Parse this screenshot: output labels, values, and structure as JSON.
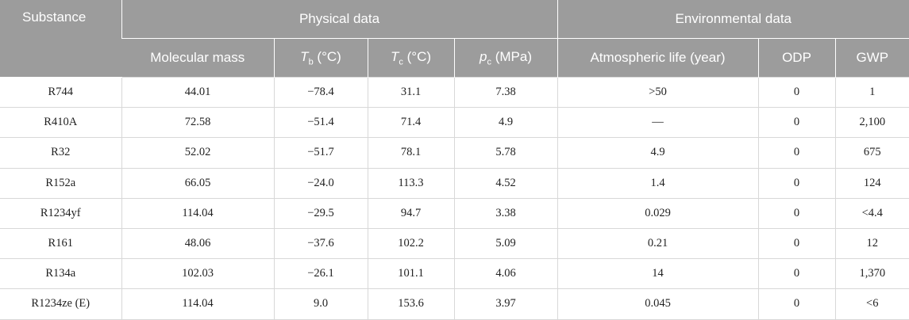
{
  "table": {
    "group_headers": [
      "Substance",
      "Physical data",
      "Environmental data"
    ],
    "columns": [
      {
        "text": "Molecular mass"
      },
      {
        "symbol": "T",
        "subscript": "b",
        "text": "(°C)"
      },
      {
        "symbol": "T",
        "subscript": "c",
        "text": "(°C)"
      },
      {
        "symbol": "p",
        "subscript": "c",
        "text": "(MPa)"
      },
      {
        "text": "Atmospheric life (year)"
      },
      {
        "text": "ODP"
      },
      {
        "text": "GWP"
      }
    ],
    "rows": [
      [
        "R744",
        "44.01",
        "−78.4",
        "31.1",
        "7.38",
        ">50",
        "0",
        "1"
      ],
      [
        "R410A",
        "72.58",
        "−51.4",
        "71.4",
        "4.9",
        "—",
        "0",
        "2,100"
      ],
      [
        "R32",
        "52.02",
        "−51.7",
        "78.1",
        "5.78",
        "4.9",
        "0",
        "675"
      ],
      [
        "R152a",
        "66.05",
        "−24.0",
        "113.3",
        "4.52",
        "1.4",
        "0",
        "124"
      ],
      [
        "R1234yf",
        "114.04",
        "−29.5",
        "94.7",
        "3.38",
        "0.029",
        "0",
        "<4.4"
      ],
      [
        "R161",
        "48.06",
        "−37.6",
        "102.2",
        "5.09",
        "0.21",
        "0",
        "12"
      ],
      [
        "R134a",
        "102.03",
        "−26.1",
        "101.1",
        "4.06",
        "14",
        "0",
        "1,370"
      ],
      [
        "R1234ze (E)",
        "114.04",
        "9.0",
        "153.6",
        "3.97",
        "0.045",
        "0",
        "<6"
      ]
    ]
  }
}
